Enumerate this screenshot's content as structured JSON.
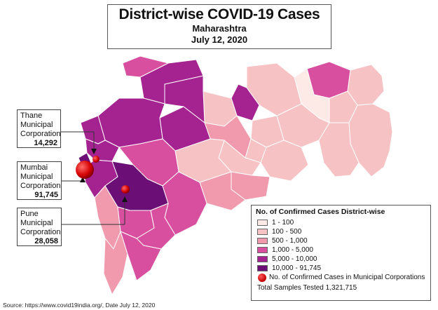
{
  "title": {
    "main": "District-wise COVID-19 Cases",
    "region": "Maharashtra",
    "date": "July 12, 2020"
  },
  "callouts": [
    {
      "id": "thane",
      "lines": [
        "Thane",
        "Municipal",
        "Corporation"
      ],
      "value": "14,292"
    },
    {
      "id": "mumbai",
      "lines": [
        "Mumbai",
        "Municipal",
        "Corporation"
      ],
      "value": "91,745"
    },
    {
      "id": "pune",
      "lines": [
        "Pune",
        "Municipal",
        "Corporation"
      ],
      "value": "28,058"
    }
  ],
  "legend": {
    "title": "No. of Confirmed Cases District-wise",
    "classes": [
      {
        "label": "1 - 100",
        "color": "#fde9e6"
      },
      {
        "label": "100 - 500",
        "color": "#f7c2c4"
      },
      {
        "label": "500 - 1,000",
        "color": "#f199ad"
      },
      {
        "label": "1,000 - 5,000",
        "color": "#d94fa0"
      },
      {
        "label": "5,000 - 10,000",
        "color": "#a52391"
      },
      {
        "label": "10,000 - 91,745",
        "color": "#6b0f77"
      }
    ],
    "corp_label": "No. of Confirmed Cases in Municipal Corporations",
    "total": "Total Samples Tested 1,321,715"
  },
  "source": "Source: https://www.covid19india.org/, Date July 12, 2020",
  "colors": {
    "border": "#ffffff",
    "dot": "#d40000"
  }
}
